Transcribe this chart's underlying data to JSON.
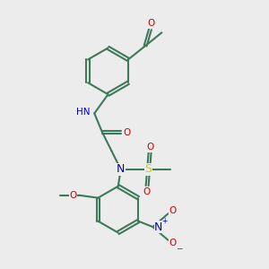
{
  "background_color": "#ececec",
  "bond_color": "#3d7a5a",
  "atom_colors": {
    "N": "#0000cc",
    "O": "#cc0000",
    "S": "#cccc00"
  },
  "fs": 7.5,
  "fs_large": 9.0,
  "lw": 1.5
}
